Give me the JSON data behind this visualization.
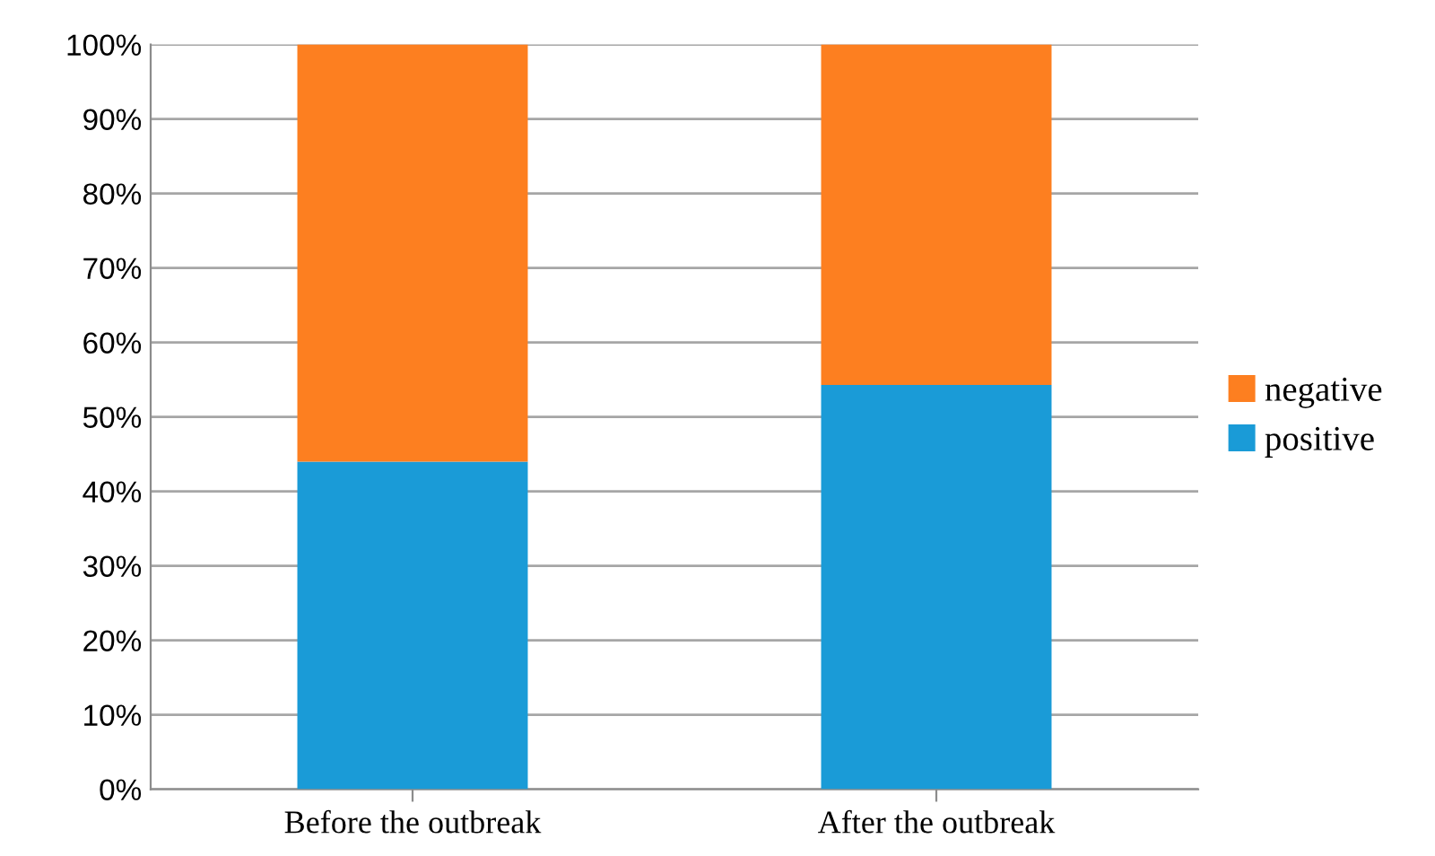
{
  "chart_data": {
    "type": "bar",
    "stacked": true,
    "categories": [
      "Before the outbreak",
      "After the outbreak"
    ],
    "series": [
      {
        "name": "positive",
        "color": "#1a9bd7",
        "values": [
          44,
          54.3
        ]
      },
      {
        "name": "negative",
        "color": "#fd7f20",
        "values": [
          56,
          45.7
        ]
      }
    ],
    "ylim": [
      0,
      100
    ],
    "yticks": [
      {
        "value": 0,
        "label": "0%"
      },
      {
        "value": 10,
        "label": "10%"
      },
      {
        "value": 20,
        "label": "20%"
      },
      {
        "value": 30,
        "label": "30%"
      },
      {
        "value": 40,
        "label": "40%"
      },
      {
        "value": 50,
        "label": "50%"
      },
      {
        "value": 60,
        "label": "60%"
      },
      {
        "value": 70,
        "label": "70%"
      },
      {
        "value": 80,
        "label": "80%"
      },
      {
        "value": 90,
        "label": "90%"
      },
      {
        "value": 100,
        "label": "100%"
      }
    ],
    "grid": "y",
    "legend": "right"
  }
}
